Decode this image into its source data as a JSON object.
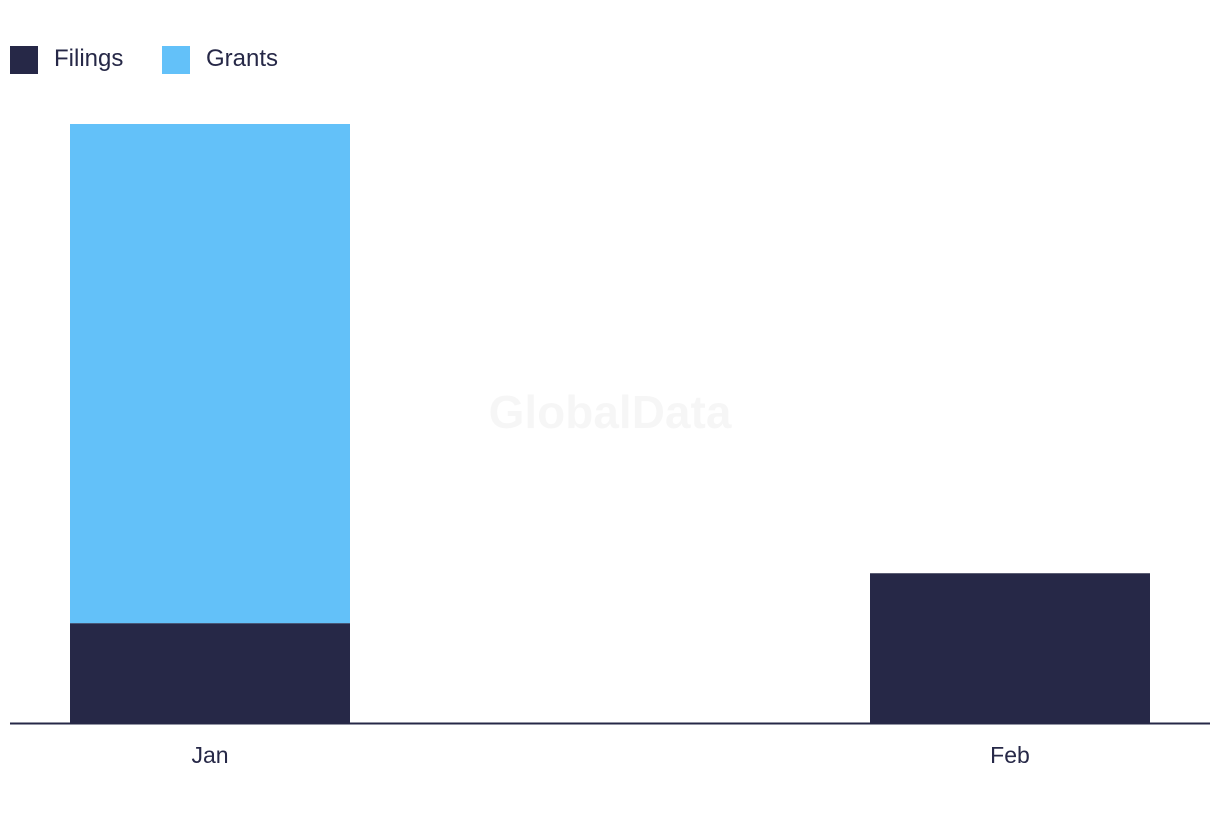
{
  "watermark": "GlobalData",
  "chart_data": {
    "type": "bar",
    "stacked": true,
    "categories": [
      "Jan",
      "Feb"
    ],
    "series": [
      {
        "name": "Filings",
        "color": "#262847",
        "values": [
          2,
          3
        ]
      },
      {
        "name": "Grants",
        "color": "#63c1f9",
        "values": [
          10,
          0
        ]
      }
    ],
    "ylim": [
      0,
      12
    ],
    "grid": false,
    "legend_position": "top-left"
  }
}
